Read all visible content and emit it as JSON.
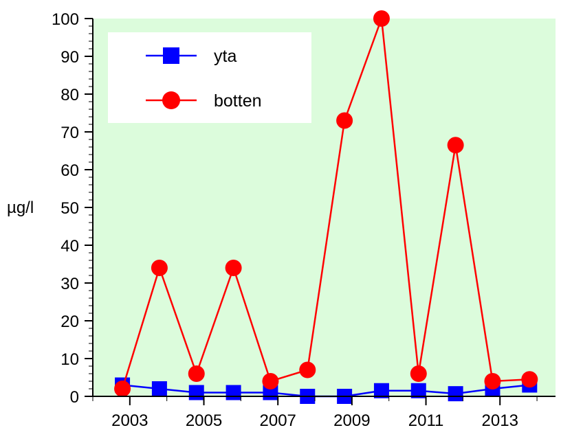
{
  "chart_data": {
    "type": "line",
    "title": "",
    "xlabel": "",
    "ylabel": "µg/l",
    "xlim": [
      2002,
      2014.5
    ],
    "ylim": [
      0,
      100
    ],
    "x_ticks": [
      2003,
      2005,
      2007,
      2009,
      2011,
      2013
    ],
    "y_ticks": [
      0,
      10,
      20,
      30,
      40,
      50,
      60,
      70,
      80,
      90,
      100
    ],
    "grid": false,
    "background_color": "#dcfcdc",
    "legend_position": "top-left",
    "series": [
      {
        "name": "yta",
        "color": "#0000ff",
        "marker": "square",
        "x": [
          2002.8,
          2003.8,
          2004.8,
          2005.8,
          2006.8,
          2007.8,
          2008.8,
          2009.8,
          2010.8,
          2011.8,
          2012.8,
          2013.8
        ],
        "y": [
          3,
          2,
          1,
          1,
          1,
          0,
          0,
          1.5,
          1.5,
          0.7,
          2,
          3
        ]
      },
      {
        "name": "botten",
        "color": "#ff0000",
        "marker": "circle",
        "x": [
          2002.8,
          2003.8,
          2004.8,
          2005.8,
          2006.8,
          2007.8,
          2008.8,
          2009.8,
          2010.8,
          2011.8,
          2012.8,
          2013.8
        ],
        "y": [
          2,
          34,
          6,
          34,
          4,
          7,
          73,
          100,
          6,
          66.5,
          4,
          4.5
        ]
      }
    ]
  }
}
